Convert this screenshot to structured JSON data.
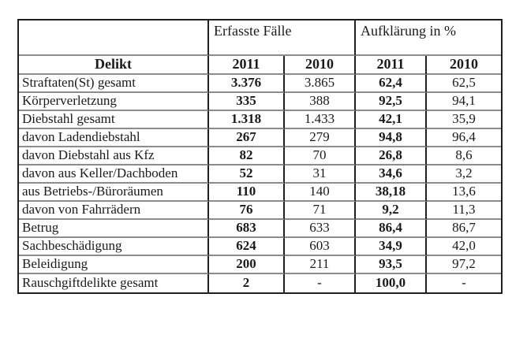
{
  "table": {
    "header_groups": {
      "cases_label": "Erfasste Fälle",
      "clearance_label": "Aufklärung in %"
    },
    "columns": {
      "delikt_label": "Delikt",
      "year_cases_2011": "2011",
      "year_cases_2010": "2010",
      "year_clearance_2011": "2011",
      "year_clearance_2010": "2010"
    },
    "rows": [
      {
        "delikt": "Straftaten(St) gesamt",
        "cases_2011": "3.376",
        "cases_2010": "3.865",
        "clearance_2011": "62,4",
        "clearance_2010": "62,5"
      },
      {
        "delikt": "Körperverletzung",
        "cases_2011": "335",
        "cases_2010": "388",
        "clearance_2011": "92,5",
        "clearance_2010": "94,1"
      },
      {
        "delikt": "Diebstahl gesamt",
        "cases_2011": "1.318",
        "cases_2010": "1.433",
        "clearance_2011": "42,1",
        "clearance_2010": "35,9"
      },
      {
        "delikt": "davon Ladendiebstahl",
        "cases_2011": "267",
        "cases_2010": "279",
        "clearance_2011": "94,8",
        "clearance_2010": "96,4"
      },
      {
        "delikt": "davon Diebstahl aus Kfz",
        "cases_2011": "82",
        "cases_2010": "70",
        "clearance_2011": "26,8",
        "clearance_2010": "8,6"
      },
      {
        "delikt": "davon aus Keller/Dachboden",
        "cases_2011": "52",
        "cases_2010": "31",
        "clearance_2011": "34,6",
        "clearance_2010": "3,2"
      },
      {
        "delikt": "aus Betriebs-/Büroräumen",
        "cases_2011": "110",
        "cases_2010": "140",
        "clearance_2011": "38,18",
        "clearance_2010": "13,6"
      },
      {
        "delikt": "davon von Fahrrädern",
        "cases_2011": "76",
        "cases_2010": "71",
        "clearance_2011": "9,2",
        "clearance_2010": "11,3"
      },
      {
        "delikt": "Betrug",
        "cases_2011": "683",
        "cases_2010": "633",
        "clearance_2011": "86,4",
        "clearance_2010": "86,7"
      },
      {
        "delikt": "Sachbeschädigung",
        "cases_2011": "624",
        "cases_2010": "603",
        "clearance_2011": "34,9",
        "clearance_2010": "42,0"
      },
      {
        "delikt": "Beleidigung",
        "cases_2011": "200",
        "cases_2010": "211",
        "clearance_2011": "93,5",
        "clearance_2010": "97,2"
      },
      {
        "delikt": "Rauschgiftdelikte gesamt",
        "cases_2011": "2",
        "cases_2010": "-",
        "clearance_2011": "100,0",
        "clearance_2010": "-"
      }
    ]
  }
}
